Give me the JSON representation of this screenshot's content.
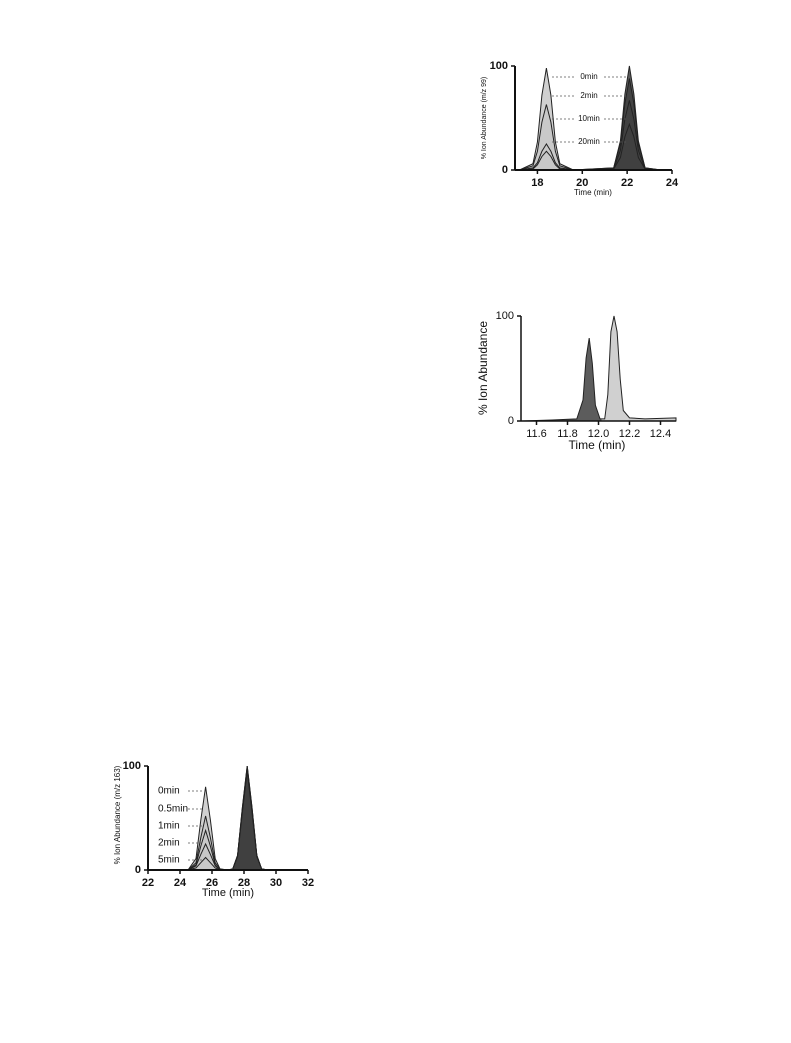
{
  "chart_data": [
    {
      "type": "area",
      "ylabel": "% Ion Abundance (m/z 99)",
      "xlabel": "Time (min)",
      "xlim": [
        17,
        24
      ],
      "xticks": [
        18,
        20,
        22,
        24
      ],
      "ylim": [
        0,
        100
      ],
      "yticks": [
        0,
        100
      ],
      "fills": [
        "#c8c8c8",
        "#404040"
      ],
      "x": [
        17.2,
        17.8,
        18.0,
        18.2,
        18.4,
        18.6,
        18.8,
        19.0,
        19.6,
        21.4,
        21.7,
        21.9,
        22.1,
        22.3,
        22.5,
        22.8,
        23.5,
        24
      ],
      "series": [
        {
          "name": "0min",
          "color": "#222222",
          "values": [
            0,
            6,
            27,
            72,
            98,
            72,
            27,
            6,
            0,
            2,
            28,
            73,
            100,
            73,
            28,
            2,
            0,
            0
          ]
        },
        {
          "name": "2min",
          "color": "#222222",
          "values": [
            0,
            4,
            18,
            46,
            63,
            46,
            18,
            4,
            0,
            2,
            25,
            64,
            88,
            64,
            25,
            2,
            0,
            0
          ]
        },
        {
          "name": "10min",
          "color": "#222222",
          "values": [
            0,
            2,
            7,
            18,
            25,
            18,
            7,
            2,
            0,
            1,
            19,
            49,
            67,
            49,
            19,
            1,
            0,
            0
          ]
        },
        {
          "name": "20min",
          "color": "#222222",
          "values": [
            0,
            1,
            5,
            13,
            18,
            13,
            5,
            1,
            0,
            1,
            12,
            32,
            44,
            32,
            12,
            1,
            0,
            0
          ]
        }
      ]
    },
    {
      "type": "area",
      "ylabel": "% Ion Abundance",
      "xlabel": "Time (min)",
      "xlim": [
        11.5,
        12.5
      ],
      "xticks": [
        11.6,
        11.8,
        {
          "value": 12,
          "label": "12.0"
        },
        12.2,
        12.4
      ],
      "ylim": [
        0,
        100
      ],
      "yticks": [
        0,
        100
      ],
      "fills": [
        "#404040",
        "#c8c8c8"
      ],
      "x": [
        11.5,
        11.7,
        11.86,
        11.9,
        11.92,
        11.94,
        11.96,
        11.98,
        12.01,
        12.04,
        12.06,
        12.08,
        12.1,
        12.12,
        12.14,
        12.16,
        12.2,
        12.3,
        12.5
      ],
      "series": [
        {
          "color": "#222222",
          "values": [
            0,
            1,
            2,
            20,
            60,
            79,
            55,
            15,
            2,
            2,
            25,
            85,
            100,
            85,
            40,
            10,
            3,
            2,
            3
          ]
        }
      ]
    },
    {
      "type": "area",
      "ylabel": "% Ion Abundance (m/z 163)",
      "xlabel": "Time (min)",
      "xlim": [
        22,
        32
      ],
      "xticks": [
        22,
        24,
        26,
        28,
        30,
        32
      ],
      "ylim": [
        0,
        100
      ],
      "yticks": [
        0,
        100
      ],
      "fills": [
        "#c8c8c8",
        "#404040"
      ],
      "x": [
        22,
        24.5,
        25.0,
        25.3,
        25.6,
        25.9,
        26.2,
        26.5,
        27.0,
        27.3,
        27.6,
        27.9,
        28.2,
        28.5,
        28.8,
        29.1,
        29.5,
        32
      ],
      "series": [
        {
          "name": "0min",
          "color": "#222222",
          "values": [
            0,
            0,
            11,
            48,
            80,
            48,
            11,
            1,
            0,
            1,
            14,
            60,
            100,
            60,
            14,
            1,
            0,
            0
          ]
        },
        {
          "name": "0.5min",
          "color": "#222222",
          "values": [
            0,
            0,
            7,
            31,
            52,
            31,
            7,
            1,
            0,
            1,
            14,
            60,
            100,
            60,
            14,
            1,
            0,
            0
          ]
        },
        {
          "name": "1min",
          "color": "#222222",
          "values": [
            0,
            0,
            5,
            23,
            38,
            23,
            5,
            0,
            0,
            1,
            14,
            58,
            98,
            58,
            14,
            1,
            0,
            0
          ]
        },
        {
          "name": "2min",
          "color": "#222222",
          "values": [
            0,
            0,
            4,
            15,
            25,
            15,
            4,
            0,
            0,
            1,
            13,
            57,
            96,
            57,
            13,
            1,
            0,
            0
          ]
        },
        {
          "name": "5min",
          "color": "#222222",
          "values": [
            0,
            0,
            2,
            7,
            12,
            7,
            2,
            0,
            0,
            1,
            13,
            56,
            95,
            56,
            13,
            1,
            0,
            0
          ]
        }
      ]
    }
  ]
}
